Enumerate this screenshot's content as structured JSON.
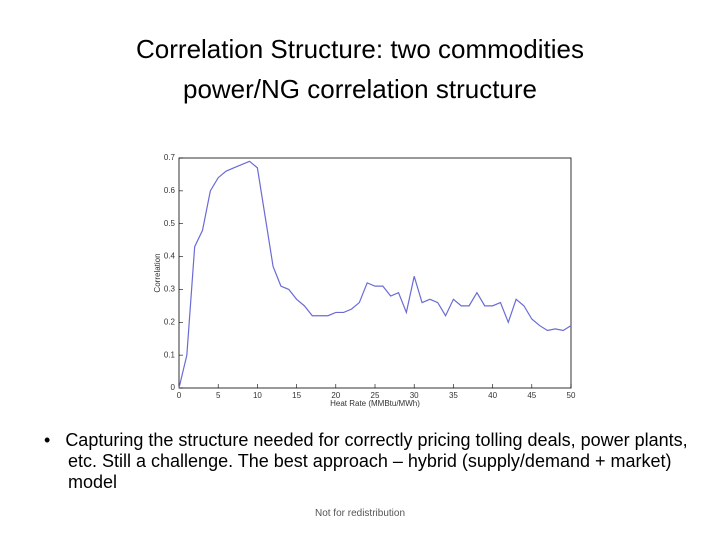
{
  "slide": {
    "title_lines": [
      "Correlation Structure: two commodities",
      "power/NG correlation structure"
    ],
    "bullet": "Capturing the structure needed for correctly pricing tolling deals, power plants, etc. Still a challenge. The best approach – hybrid (supply/demand + market) model",
    "footer": "Not for redistribution"
  },
  "chart_data": {
    "type": "line",
    "x_label": "Heat Rate (MMBtu/MWh)",
    "y_label": "Correlation",
    "x": [
      0,
      1,
      2,
      3,
      4,
      5,
      6,
      7,
      8,
      9,
      10,
      11,
      12,
      13,
      14,
      15,
      16,
      17,
      18,
      19,
      20,
      21,
      22,
      23,
      24,
      25,
      26,
      27,
      28,
      29,
      30,
      31,
      32,
      33,
      34,
      35,
      36,
      37,
      38,
      39,
      40,
      41,
      42,
      43,
      44,
      45,
      46,
      47,
      48,
      49,
      50
    ],
    "series": [
      {
        "name": "Correlation",
        "color": "#6b6bd6",
        "values": [
          0.0,
          0.1,
          0.43,
          0.48,
          0.6,
          0.64,
          0.66,
          0.67,
          0.68,
          0.69,
          0.67,
          0.52,
          0.37,
          0.31,
          0.3,
          0.27,
          0.25,
          0.22,
          0.22,
          0.22,
          0.23,
          0.23,
          0.24,
          0.26,
          0.32,
          0.31,
          0.31,
          0.28,
          0.29,
          0.23,
          0.34,
          0.26,
          0.27,
          0.26,
          0.22,
          0.27,
          0.25,
          0.25,
          0.29,
          0.25,
          0.25,
          0.26,
          0.2,
          0.27,
          0.25,
          0.21,
          0.19,
          0.175,
          0.18,
          0.175,
          0.19
        ]
      }
    ],
    "xlim": [
      0,
      50
    ],
    "xticks": [
      0,
      5,
      10,
      15,
      20,
      25,
      30,
      35,
      40,
      45,
      50
    ],
    "ylim": [
      0,
      0.7
    ],
    "yticks": [
      0,
      0.1,
      0.2,
      0.3,
      0.4,
      0.5,
      0.6,
      0.7
    ]
  }
}
